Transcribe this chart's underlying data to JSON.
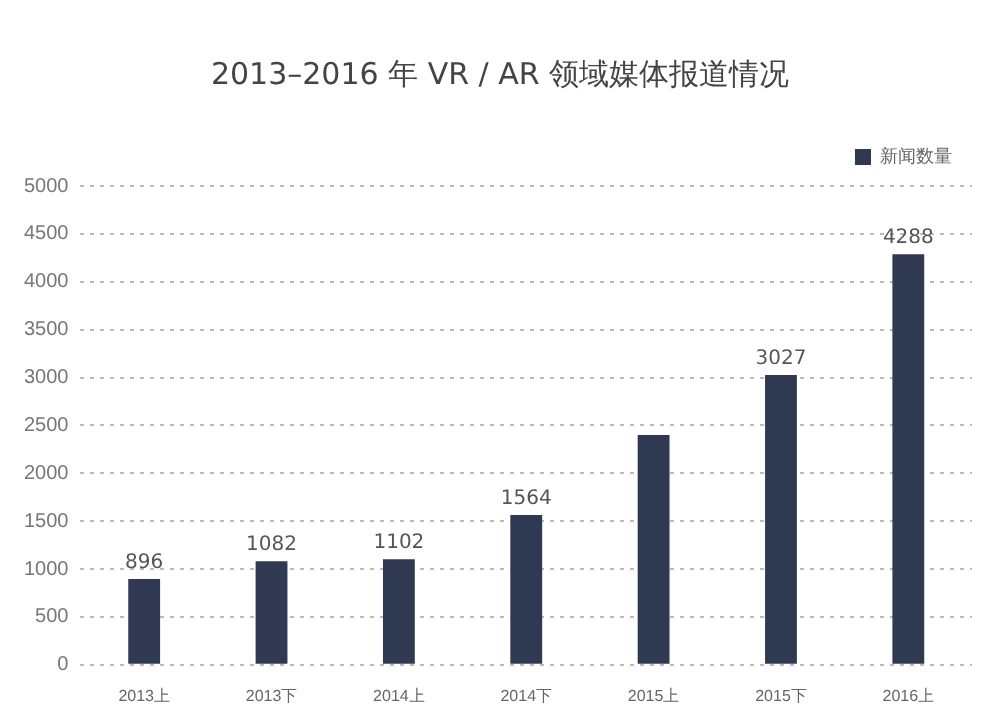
{
  "chart_data": {
    "type": "bar",
    "title": "2013–2016 年 VR / AR 领域媒体报道情况",
    "categories": [
      "2013上",
      "2013下",
      "2014上",
      "2014下",
      "2015上",
      "2015下",
      "2016上"
    ],
    "series": [
      {
        "name": "新闻数量",
        "color": "#2f3a52",
        "values": [
          896,
          1082,
          1102,
          1564,
          2400,
          3027,
          4288
        ],
        "value_labels": [
          "896",
          "1082",
          "1102",
          "1564",
          null,
          "3027",
          "4288"
        ]
      }
    ],
    "ylim": [
      0,
      5000
    ],
    "yticks": [
      0,
      500,
      1000,
      1500,
      2000,
      2500,
      3000,
      3500,
      4000,
      4500,
      5000
    ],
    "grid": "y",
    "legend": "top right",
    "line_style": "dotted"
  }
}
